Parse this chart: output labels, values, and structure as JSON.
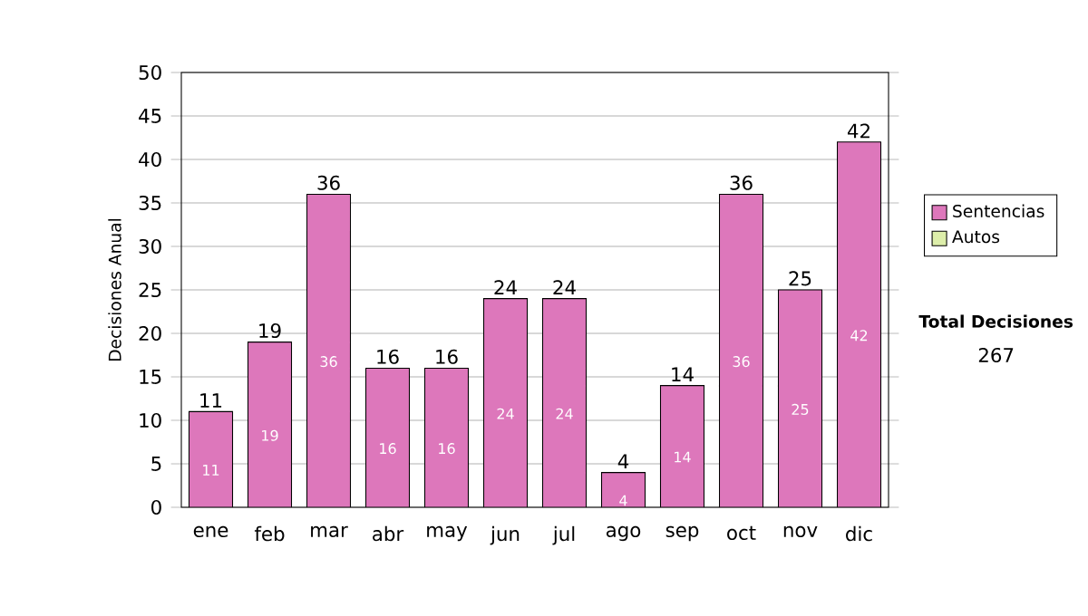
{
  "chart_data": {
    "type": "bar",
    "stacked": true,
    "ylabel": "Decisiones Anual",
    "categories": [
      "ene",
      "feb",
      "mar",
      "abr",
      "may",
      "jun",
      "jul",
      "ago",
      "sep",
      "oct",
      "nov",
      "dic"
    ],
    "series": [
      {
        "name": "Sentencias",
        "color": "#dd77bb",
        "values": [
          11,
          19,
          36,
          16,
          16,
          24,
          24,
          4,
          14,
          36,
          25,
          42
        ]
      },
      {
        "name": "Autos",
        "color": "#ddeeaa",
        "values": [
          null,
          null,
          null,
          null,
          null,
          null,
          null,
          null,
          null,
          null,
          null,
          null
        ]
      }
    ],
    "totals": [
      "11",
      "19",
      "36",
      "16",
      "16",
      "24",
      "24",
      "4",
      "14",
      "36",
      "25",
      "42"
    ],
    "data_labels": true,
    "ylim": [
      0,
      50
    ],
    "yticks": [
      0,
      5,
      10,
      15,
      20,
      25,
      30,
      35,
      40,
      45,
      50
    ],
    "grid": "y",
    "legend": "right",
    "annotations": [
      "Total Decisiones",
      "267"
    ]
  }
}
